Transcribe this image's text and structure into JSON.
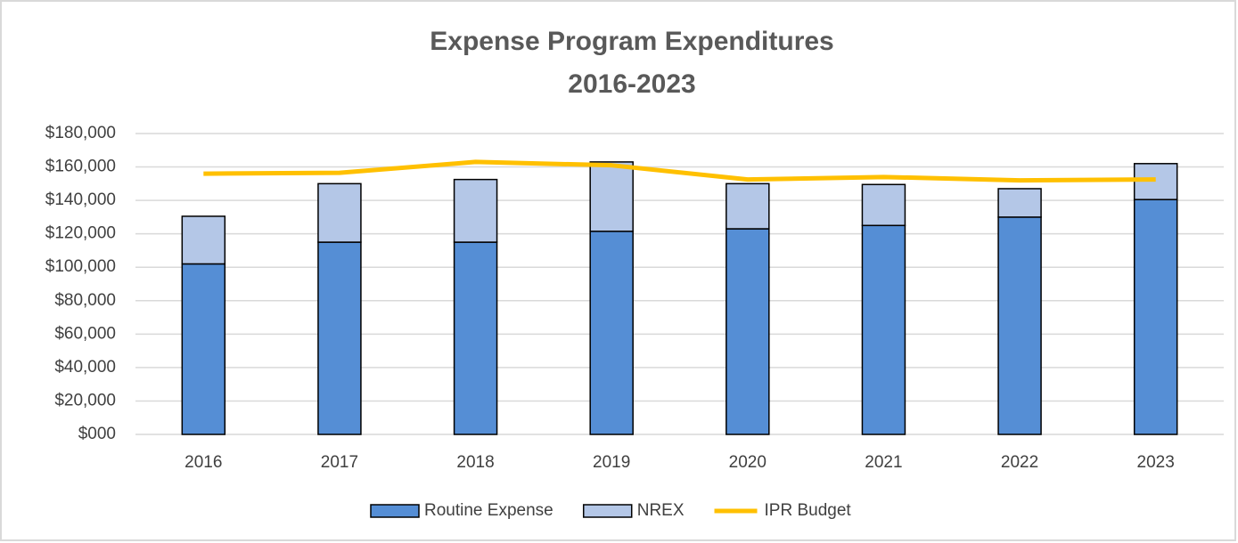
{
  "chart_data": {
    "type": "stacked-bar-line",
    "title": [
      "Expense Program Expenditures",
      "2016-2023"
    ],
    "categories": [
      "2016",
      "2017",
      "2018",
      "2019",
      "2020",
      "2021",
      "2022",
      "2023"
    ],
    "series": [
      {
        "name": "Routine Expense",
        "color": "#558ed5",
        "kind": "bar",
        "values": [
          102000,
          115000,
          115000,
          121500,
          123000,
          125000,
          130000,
          140500
        ]
      },
      {
        "name": "NREX",
        "color": "#b4c7e7",
        "kind": "bar",
        "values": [
          28500,
          35000,
          37500,
          41500,
          27000,
          24500,
          17000,
          21500
        ]
      },
      {
        "name": "IPR Budget",
        "color": "#ffc000",
        "kind": "line",
        "values": [
          156000,
          156500,
          163000,
          161000,
          152500,
          154000,
          152000,
          152500
        ]
      }
    ],
    "ylim": [
      0,
      180000
    ],
    "yticks": [
      {
        "value": 0,
        "label": "$000"
      },
      {
        "value": 20000,
        "label": "$20,000"
      },
      {
        "value": 40000,
        "label": "$40,000"
      },
      {
        "value": 60000,
        "label": "$60,000"
      },
      {
        "value": 80000,
        "label": "$80,000"
      },
      {
        "value": 100000,
        "label": "$100,000"
      },
      {
        "value": 120000,
        "label": "$120,000"
      },
      {
        "value": 140000,
        "label": "$140,000"
      },
      {
        "value": 160000,
        "label": "$160,000"
      },
      {
        "value": 180000,
        "label": "$180,000"
      }
    ],
    "grid": true,
    "legend": "bottom"
  }
}
